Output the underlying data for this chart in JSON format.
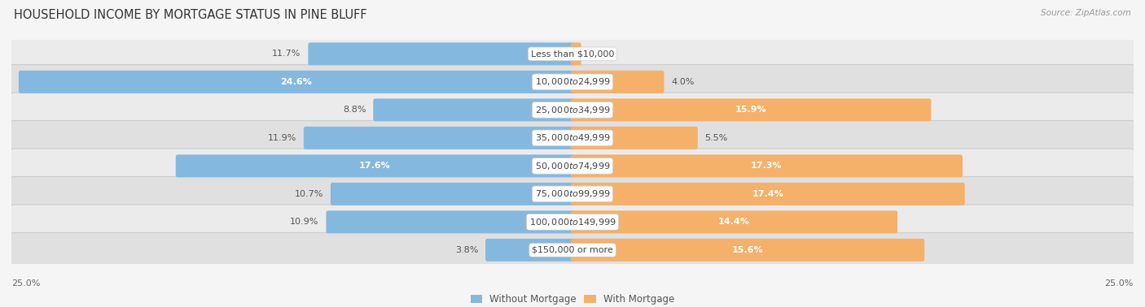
{
  "title": "HOUSEHOLD INCOME BY MORTGAGE STATUS IN PINE BLUFF",
  "source": "Source: ZipAtlas.com",
  "categories": [
    "Less than $10,000",
    "$10,000 to $24,999",
    "$25,000 to $34,999",
    "$35,000 to $49,999",
    "$50,000 to $74,999",
    "$75,000 to $99,999",
    "$100,000 to $149,999",
    "$150,000 or more"
  ],
  "without_mortgage": [
    11.7,
    24.6,
    8.8,
    11.9,
    17.6,
    10.7,
    10.9,
    3.8
  ],
  "with_mortgage": [
    0.31,
    4.0,
    15.9,
    5.5,
    17.3,
    17.4,
    14.4,
    15.6
  ],
  "without_color": "#85b8de",
  "without_color_light": "#b8d4eb",
  "with_color": "#f5b06a",
  "with_color_light": "#f9d4a8",
  "axis_max": 25.0,
  "row_bg_even": "#ebebeb",
  "row_bg_odd": "#e0e0e0",
  "fig_bg": "#f5f5f5",
  "title_fontsize": 10.5,
  "label_fontsize": 8,
  "value_fontsize": 8,
  "legend_fontsize": 8.5,
  "value_threshold_inside": 12
}
